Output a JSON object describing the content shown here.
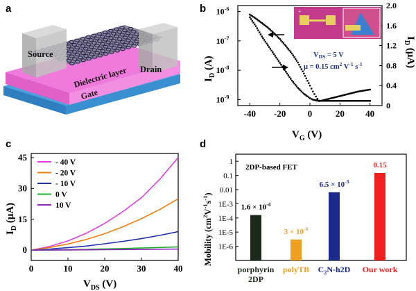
{
  "panels": {
    "a": {
      "label": "a",
      "source": "Source",
      "drain": "Drain",
      "dielectric": "Dielectric layer",
      "gate": "Gate",
      "colors": {
        "dielectric": "#f079dc",
        "gate": "#4aa0df",
        "electrode": "#b9b9b9",
        "hex": "#3a3560"
      }
    },
    "b": {
      "label": "b",
      "annotation_vds": "V",
      "annotation_vds_sub": "DS",
      "annotation_vds_val": " = 5 V",
      "annotation_mu": "μ = 0.15 cm",
      "annotation_mu_sup": "2",
      "annotation_mu_rest": " V",
      "annotation_mu_sup2": "-1",
      "annotation_mu_rest2": " s",
      "annotation_mu_sup3": "-1",
      "inset_label": "+",
      "colors": {
        "annotation": "#1f2f8f",
        "inset_bg": "#c23a8a"
      }
    },
    "c": {
      "label": "c"
    },
    "d": {
      "label": "d",
      "title": "2DP-based FET"
    }
  },
  "chart_data": [
    {
      "panel": "b",
      "type": "scatter",
      "title": "",
      "xlabel": "V",
      "xlabel_sub": "G",
      "xlabel_unit": " (V)",
      "ylabel_left": "I",
      "ylabel_left_sub": "D",
      "ylabel_left_unit": " (A)",
      "ylabel_right": "I",
      "ylabel_right_sub": "D",
      "ylabel_right_unit": " (μA)",
      "xlim": [
        -48,
        48
      ],
      "xticks": [
        "-40",
        "-20",
        "0",
        "20",
        "40"
      ],
      "xtick_values": [
        -40,
        -20,
        0,
        20,
        40
      ],
      "ylim_left_log10": [
        -9.2,
        -5.8
      ],
      "yticks_left": [
        "10",
        "10",
        "10",
        "10"
      ],
      "yticks_left_exp": [
        "-9",
        "-8",
        "-7",
        "-6"
      ],
      "ytick_left_values": [
        -9,
        -8,
        -7,
        -6
      ],
      "ylim_right": [
        0,
        2.0
      ],
      "yticks_right": [
        "0",
        "0.4",
        "0.8",
        "1.2",
        "1.6",
        "2.0"
      ],
      "ytick_right_values": [
        0,
        0.4,
        0.8,
        1.2,
        1.6,
        2.0
      ],
      "series": [
        {
          "name": "I_D log scale (left axis)",
          "axis": "left-log",
          "x": [
            -40,
            -36,
            -32,
            -28,
            -24,
            -20,
            -16,
            -12,
            -8,
            -4,
            0,
            2,
            4,
            5,
            8,
            12,
            16,
            20,
            24,
            28,
            32,
            36,
            40
          ],
          "values": [
            -6.2,
            -6.5,
            -6.85,
            -7.15,
            -7.45,
            -7.75,
            -8.05,
            -8.35,
            -8.6,
            -8.8,
            -8.95,
            -9.0,
            -9.02,
            -9.03,
            -9.04,
            -9.04,
            -9.04,
            -9.04,
            -9.04,
            -9.04,
            -9.04,
            -9.04,
            -9.04
          ]
        },
        {
          "name": "I_D linear scale (right axis)",
          "axis": "right-linear",
          "x": [
            -40,
            -36,
            -32,
            -28,
            -24,
            -20,
            -16,
            -12,
            -8,
            -4,
            0,
            2,
            4,
            6,
            8,
            12,
            16,
            20,
            24,
            28,
            32,
            36,
            40
          ],
          "values": [
            1.82,
            1.74,
            1.65,
            1.56,
            1.45,
            1.33,
            1.19,
            1.04,
            0.86,
            0.64,
            0.4,
            0.28,
            0.18,
            0.09,
            0.1,
            0.13,
            0.16,
            0.19,
            0.22,
            0.25,
            0.28,
            0.3,
            0.32
          ]
        }
      ]
    },
    {
      "panel": "c",
      "type": "line",
      "xlabel": "V",
      "xlabel_sub": "DS",
      "xlabel_unit": " (V)",
      "ylabel": "I",
      "ylabel_sub": "D",
      "ylabel_unit": " (μA)",
      "xlim": [
        0,
        40
      ],
      "ylim": [
        -5,
        47
      ],
      "xticks": [
        "0",
        "10",
        "20",
        "30",
        "40"
      ],
      "xtick_values": [
        0,
        10,
        20,
        30,
        40
      ],
      "yticks": [
        "0",
        "15",
        "30",
        "45"
      ],
      "ytick_values": [
        0,
        15,
        30,
        45
      ],
      "legend": [
        "- 40 V",
        "- 20 V",
        "- 10 V",
        "0 V",
        "10 V"
      ],
      "series": [
        {
          "name": "- 40 V",
          "color": "#e040e0",
          "x": [
            0,
            5,
            10,
            15,
            20,
            25,
            30,
            35,
            40
          ],
          "values": [
            0,
            1.8,
            4.5,
            8.2,
            13.0,
            18.8,
            25.5,
            34.5,
            45
          ]
        },
        {
          "name": "- 20 V",
          "color": "#f07f10",
          "x": [
            0,
            5,
            10,
            15,
            20,
            25,
            30,
            35,
            40
          ],
          "values": [
            0,
            1.3,
            3.0,
            5.2,
            8.0,
            11.4,
            15.3,
            19.8,
            25
          ]
        },
        {
          "name": "- 10 V",
          "color": "#2030b0",
          "x": [
            0,
            5,
            10,
            15,
            20,
            25,
            30,
            35,
            40
          ],
          "values": [
            0,
            0.5,
            1.2,
            2.0,
            3.1,
            4.3,
            5.6,
            7.2,
            9
          ]
        },
        {
          "name": "0 V",
          "color": "#20b030",
          "x": [
            0,
            5,
            10,
            15,
            20,
            25,
            30,
            35,
            40
          ],
          "values": [
            0,
            0.1,
            0.25,
            0.4,
            0.6,
            0.8,
            1.05,
            1.3,
            1.6
          ]
        },
        {
          "name": "10 V",
          "color": "#9020c0",
          "x": [
            0,
            5,
            10,
            15,
            20,
            25,
            30,
            35,
            40
          ],
          "values": [
            0,
            0.05,
            0.1,
            0.16,
            0.22,
            0.3,
            0.38,
            0.46,
            0.55
          ]
        }
      ]
    },
    {
      "panel": "d",
      "type": "bar",
      "title": "2DP-based FET",
      "ylabel": "Mobility (cm",
      "ylabel_sup": "2",
      "ylabel_mid": "V",
      "ylabel_sup2": "-1",
      "ylabel_mid2": "s",
      "ylabel_sup3": "-1",
      "ylabel_end": ")",
      "ylim_log10": [
        -7,
        0.5
      ],
      "yticks": [
        "1",
        "0.1",
        "0.01",
        "1E-3",
        "1E-4",
        "1E-5",
        "1E-6"
      ],
      "ytick_values_log10": [
        0,
        -1,
        -2,
        -3,
        -4,
        -5,
        -6
      ],
      "categories": [
        "porphyrin 2DP",
        "polyTB",
        "C2N-h2D",
        "Our work"
      ],
      "category_lines": [
        [
          "porphyrin",
          "2DP"
        ],
        [
          "polyTB"
        ],
        [
          "C",
          "2",
          "N-h2D"
        ],
        [
          "Our work"
        ]
      ],
      "category_colors": [
        "#1b2a1b",
        "#f0a020",
        "#1c2a8c",
        "#f02020"
      ],
      "values": [
        0.00016,
        3e-06,
        0.0065,
        0.15
      ],
      "value_labels": [
        {
          "mant": "1.6 × 10",
          "exp": "-4"
        },
        {
          "mant": "3 × 10",
          "exp": "-6"
        },
        {
          "mant": "6.5 × 10",
          "exp": "-3"
        },
        {
          "mant": "0.15",
          "exp": ""
        }
      ],
      "bar_colors": [
        "#1b2a1b",
        "#f0a020",
        "#1c2a8c",
        "#f02020"
      ]
    }
  ]
}
